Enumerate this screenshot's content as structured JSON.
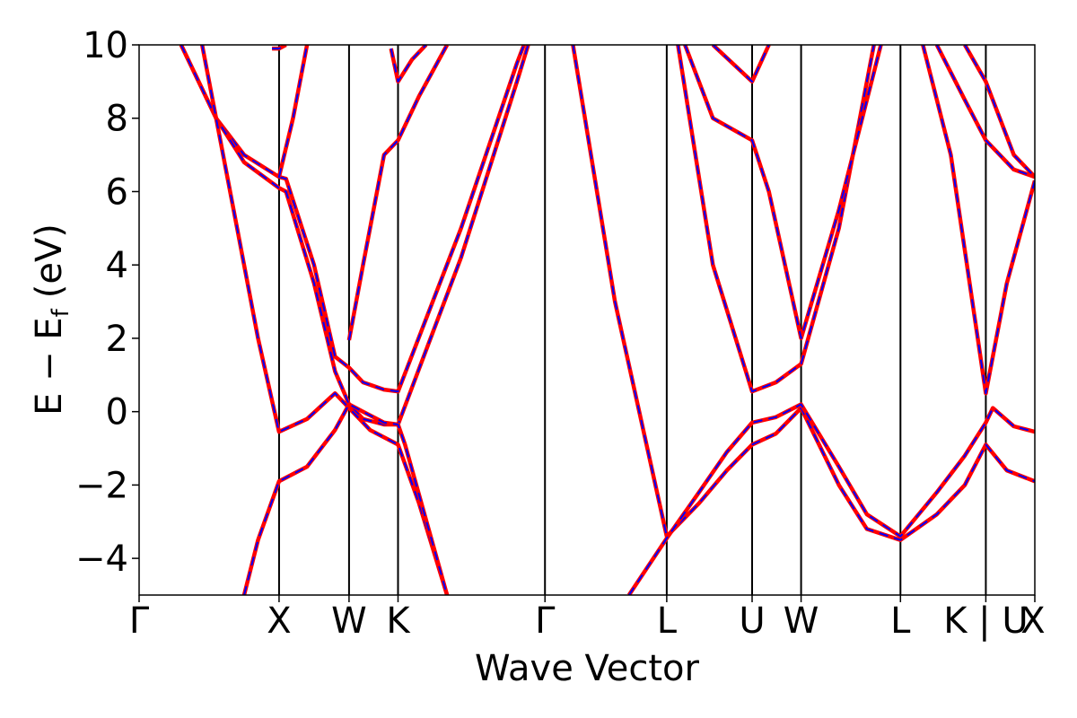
{
  "chart_data": {
    "type": "line",
    "title": "",
    "xlabel": "Wave Vector",
    "ylabel_main": "E − E",
    "ylabel_sub": "f",
    "ylabel_unit": "(eV)",
    "ylim": [
      -5,
      10
    ],
    "yticks": [
      -4,
      -2,
      0,
      2,
      4,
      6,
      8,
      10
    ],
    "ytick_labels": [
      "−4",
      "−2",
      "0",
      "2",
      "4",
      "6",
      "8",
      "10"
    ],
    "kpoint_labels": [
      "Γ",
      "X",
      "W",
      "K",
      "Γ",
      "L",
      "U",
      "W",
      "L",
      "K | U",
      "X"
    ],
    "kpoint_positions": [
      0,
      1.0,
      1.5,
      1.85,
      2.9,
      3.77,
      4.38,
      4.73,
      5.44,
      6.05,
      6.4
    ],
    "xlim": [
      0,
      6.4
    ],
    "grid": false,
    "legend": "none",
    "line_colors": {
      "primary": "#ff0000",
      "secondary": "#0000ff"
    },
    "series": [
      {
        "points": [
          [
            0.3,
            10
          ],
          [
            0.55,
            8.0
          ],
          [
            0.75,
            7.0
          ],
          [
            1.0,
            6.4
          ],
          [
            1.05,
            6.35
          ],
          [
            1.25,
            4.0
          ],
          [
            1.4,
            1.5
          ],
          [
            1.5,
            1.2
          ],
          [
            1.6,
            0.8
          ],
          [
            1.75,
            0.6
          ],
          [
            1.85,
            0.55
          ],
          [
            2.3,
            5.0
          ],
          [
            2.7,
            9.5
          ],
          [
            2.75,
            10
          ]
        ]
      },
      {
        "points": [
          [
            0.3,
            10
          ],
          [
            0.55,
            8.0
          ],
          [
            0.75,
            6.8
          ],
          [
            1.0,
            6.1
          ],
          [
            1.05,
            6.0
          ],
          [
            1.25,
            3.5
          ],
          [
            1.4,
            1.1
          ],
          [
            1.5,
            0.2
          ],
          [
            1.6,
            -0.2
          ],
          [
            1.75,
            -0.35
          ],
          [
            1.85,
            -0.35
          ],
          [
            2.3,
            4.2
          ],
          [
            2.7,
            9.0
          ],
          [
            2.78,
            10
          ]
        ]
      },
      {
        "points": [
          [
            0.45,
            10
          ],
          [
            0.55,
            8.0
          ],
          [
            0.7,
            5.0
          ],
          [
            0.85,
            2.0
          ],
          [
            1.0,
            -0.55
          ],
          [
            1.2,
            -0.2
          ],
          [
            1.4,
            0.5
          ],
          [
            1.5,
            0.1
          ],
          [
            1.65,
            -0.5
          ],
          [
            1.85,
            -0.9
          ],
          [
            2.0,
            -2.5
          ],
          [
            2.2,
            -5
          ]
        ]
      },
      {
        "points": [
          [
            0.75,
            -5
          ],
          [
            0.85,
            -3.5
          ],
          [
            1.0,
            -1.9
          ],
          [
            1.2,
            -1.5
          ],
          [
            1.4,
            -0.5
          ],
          [
            1.5,
            0.2
          ],
          [
            1.6,
            0.0
          ],
          [
            1.75,
            -0.3
          ],
          [
            1.85,
            -0.35
          ],
          [
            1.9,
            -0.9
          ],
          [
            2.2,
            -5
          ]
        ]
      },
      {
        "points": [
          [
            0.95,
            9.9
          ],
          [
            1.0,
            9.9
          ],
          [
            1.05,
            10
          ]
        ]
      },
      {
        "points": [
          [
            1.0,
            6.4
          ],
          [
            1.1,
            8.0
          ],
          [
            1.2,
            10
          ]
        ]
      },
      {
        "points": [
          [
            1.5,
            1.95
          ],
          [
            1.6,
            4.0
          ],
          [
            1.75,
            7.0
          ],
          [
            1.85,
            7.4
          ],
          [
            2.0,
            8.6
          ],
          [
            2.2,
            10
          ]
        ]
      },
      {
        "points": [
          [
            1.8,
            9.9
          ],
          [
            1.85,
            9.0
          ],
          [
            1.95,
            9.6
          ],
          [
            2.05,
            10
          ]
        ]
      },
      {
        "points": [
          [
            3.1,
            10
          ],
          [
            3.4,
            3.0
          ],
          [
            3.77,
            -3.4
          ],
          [
            4.0,
            -2.5
          ],
          [
            4.2,
            -1.6
          ],
          [
            4.38,
            -0.9
          ],
          [
            4.55,
            -0.6
          ],
          [
            4.73,
            0.1
          ],
          [
            5.0,
            -2.0
          ],
          [
            5.2,
            -3.2
          ],
          [
            5.44,
            -3.5
          ],
          [
            5.7,
            -2.8
          ],
          [
            5.9,
            -2.0
          ],
          [
            6.05,
            -0.9
          ],
          [
            6.2,
            -1.6
          ],
          [
            6.4,
            -1.9
          ]
        ]
      },
      {
        "points": [
          [
            3.5,
            -5
          ],
          [
            3.77,
            -3.45
          ],
          [
            4.0,
            -2.2
          ],
          [
            4.2,
            -1.1
          ],
          [
            4.38,
            -0.3
          ],
          [
            4.55,
            -0.15
          ],
          [
            4.73,
            0.2
          ],
          [
            5.0,
            -1.5
          ],
          [
            5.2,
            -2.8
          ],
          [
            5.44,
            -3.4
          ],
          [
            5.7,
            -2.2
          ],
          [
            5.9,
            -1.2
          ],
          [
            6.05,
            -0.3
          ],
          [
            6.1,
            0.1
          ],
          [
            6.25,
            -0.4
          ],
          [
            6.4,
            -0.55
          ]
        ]
      },
      {
        "points": [
          [
            3.85,
            10
          ],
          [
            4.1,
            4.0
          ],
          [
            4.38,
            0.55
          ],
          [
            4.55,
            0.8
          ],
          [
            4.73,
            1.3
          ],
          [
            5.0,
            5.0
          ],
          [
            5.25,
            10
          ]
        ]
      },
      {
        "points": [
          [
            3.9,
            10
          ],
          [
            4.1,
            8.0
          ],
          [
            4.38,
            7.4
          ],
          [
            4.5,
            6.0
          ],
          [
            4.73,
            2.0
          ],
          [
            5.0,
            5.5
          ],
          [
            5.3,
            10
          ]
        ]
      },
      {
        "points": [
          [
            4.1,
            10
          ],
          [
            4.38,
            9.0
          ],
          [
            4.5,
            10
          ]
        ]
      },
      {
        "points": [
          [
            5.6,
            10
          ],
          [
            5.8,
            7.0
          ],
          [
            6.05,
            0.5
          ],
          [
            6.2,
            3.5
          ],
          [
            6.4,
            6.3
          ]
        ]
      },
      {
        "points": [
          [
            5.7,
            10
          ],
          [
            5.9,
            8.5
          ],
          [
            6.05,
            7.4
          ],
          [
            6.25,
            6.6
          ],
          [
            6.4,
            6.4
          ]
        ]
      },
      {
        "points": [
          [
            5.9,
            10
          ],
          [
            6.05,
            9.0
          ],
          [
            6.25,
            7.0
          ],
          [
            6.4,
            6.4
          ]
        ]
      }
    ]
  }
}
